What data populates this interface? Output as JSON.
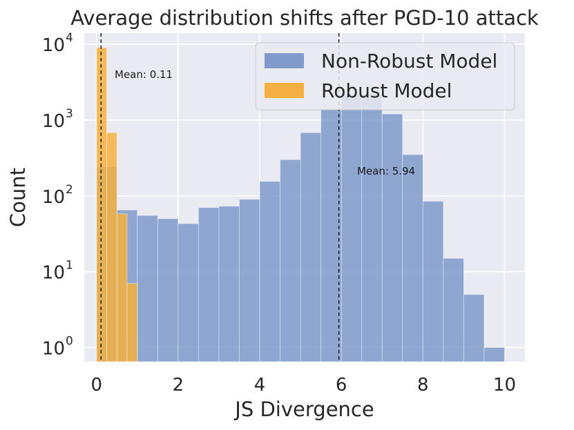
{
  "chart_data": {
    "type": "bar",
    "title": "Average distribution shifts after PGD-10 attack",
    "xlabel": "JS Divergence",
    "ylabel": "Count",
    "yscale": "log",
    "xlim": [
      -0.3,
      10.5
    ],
    "ylim": [
      0.65,
      14000
    ],
    "x_ticks": [
      0,
      2,
      4,
      6,
      8,
      10
    ],
    "y_ticks": [
      {
        "value": 1,
        "base": "10",
        "exp": "0"
      },
      {
        "value": 10,
        "base": "10",
        "exp": "1"
      },
      {
        "value": 100,
        "base": "10",
        "exp": "2"
      },
      {
        "value": 1000,
        "base": "10",
        "exp": "3"
      },
      {
        "value": 10000,
        "base": "10",
        "exp": "4"
      }
    ],
    "grid": true,
    "legend_position": "top-right",
    "series": [
      {
        "name": "Non-Robust Model",
        "color": "#7f9acb",
        "bin_start": 0.0,
        "bin_width": 0.5,
        "values": [
          240,
          65,
          55,
          50,
          43,
          70,
          73,
          90,
          155,
          300,
          680,
          1400,
          2200,
          2200,
          1200,
          350,
          85,
          15,
          5,
          1
        ]
      },
      {
        "name": "Robust Model",
        "color": "#f5b041",
        "bin_start": 0.0,
        "bin_width": 0.25,
        "values": [
          9000,
          680,
          58,
          7
        ]
      }
    ],
    "annotations": [
      {
        "x": 0.11,
        "label": "Mean: 0.11"
      },
      {
        "x": 5.94,
        "label": "Mean: 5.94"
      }
    ]
  }
}
